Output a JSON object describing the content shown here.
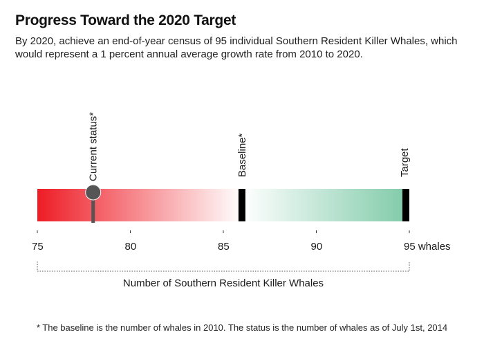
{
  "title": "Progress Toward the 2020 Target",
  "subtitle": "By 2020, achieve an end-of-year census of 95 individual Southern Resident Killer Whales, which would represent a 1 percent annual average growth rate from 2010 to 2020.",
  "footnote": "* The baseline is the number of whales in 2010. The status is the number of whales as of July 1st, 2014",
  "colors": {
    "red": "#ee1c25",
    "green": "#7fcaa8",
    "marker": "#000000",
    "pin": "#555555"
  },
  "chart_data": {
    "type": "bar",
    "xlabel": "Number of Southern Resident Killer Whales",
    "unit": "whales",
    "xlim": [
      75,
      95
    ],
    "ticks": [
      75,
      80,
      85,
      90,
      95
    ],
    "tick_labels": [
      "75",
      "80",
      "85",
      "90",
      "95 whales"
    ],
    "current_status": {
      "label": "Current status*",
      "value": 78
    },
    "baseline": {
      "label": "Baseline*",
      "value": 86
    },
    "target": {
      "label": "Target",
      "value": 95
    }
  }
}
